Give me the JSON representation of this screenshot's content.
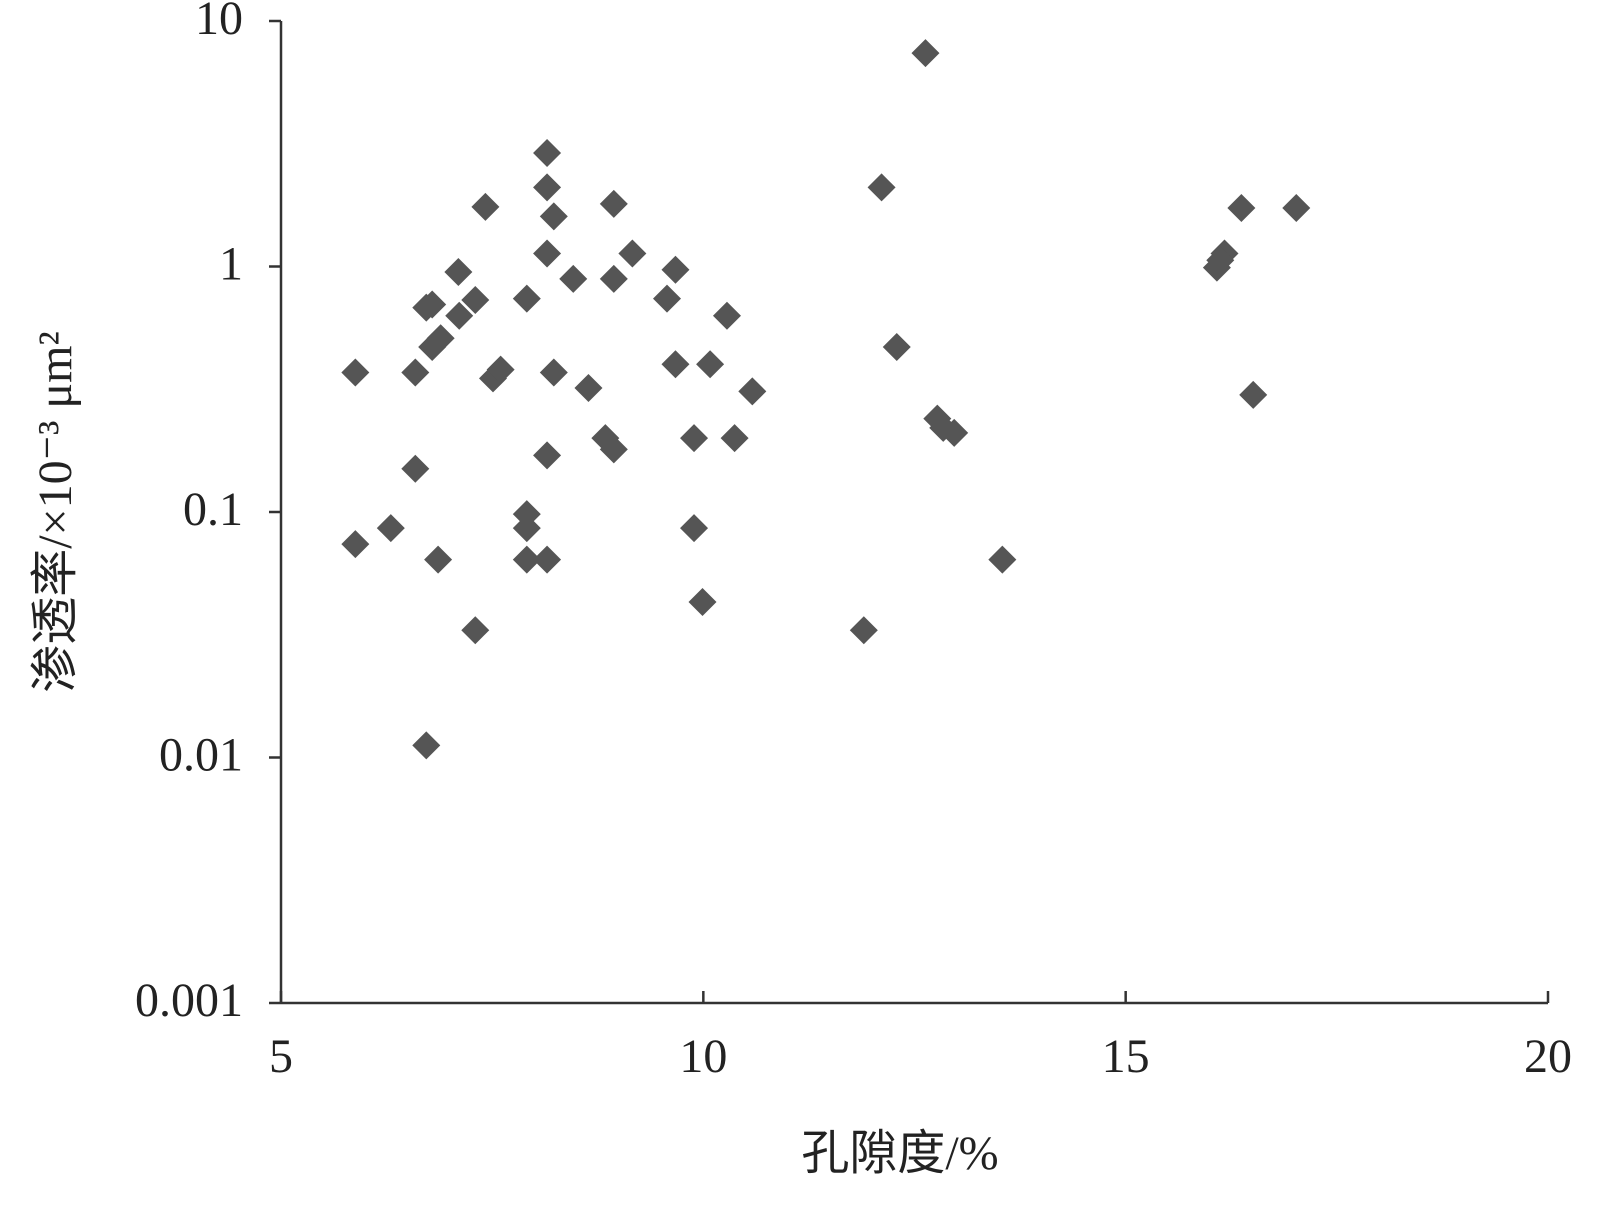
{
  "chart_data": {
    "type": "scatter",
    "x_label": "孔隙度/%",
    "y_label": "渗透率/×10⁻³ μm²",
    "color": "#555555",
    "marker": "diamond",
    "ylog": true,
    "grid": false,
    "xlim": [
      5,
      20
    ],
    "xticks": [
      5,
      10,
      15,
      20
    ],
    "ylim": [
      0.001,
      10
    ],
    "yticks": [
      0.001,
      0.01,
      0.1,
      1,
      10
    ],
    "x": [
      5.88,
      5.88,
      6.3,
      6.59,
      6.59,
      6.72,
      6.79,
      6.72,
      6.86,
      6.79,
      6.89,
      7.1,
      7.11,
      7.3,
      7.3,
      7.42,
      7.51,
      7.6,
      7.91,
      7.91,
      7.91,
      7.91,
      8.15,
      8.15,
      8.15,
      8.15,
      8.15,
      8.23,
      8.23,
      8.46,
      8.64,
      8.84,
      8.94,
      8.94,
      8.94,
      9.16,
      9.57,
      9.67,
      9.67,
      9.89,
      9.89,
      9.99,
      10.08,
      10.28,
      10.37,
      10.58,
      11.9,
      12.11,
      12.29,
      12.63,
      12.77,
      12.97,
      12.84,
      13.54,
      16.08,
      16.17,
      16.12,
      16.37,
      16.51,
      17.02
    ],
    "values": [
      0.37,
      0.074,
      0.086,
      0.37,
      0.15,
      0.68,
      0.7,
      0.0112,
      0.064,
      0.47,
      0.51,
      0.95,
      0.63,
      0.73,
      0.033,
      1.75,
      0.35,
      0.38,
      0.74,
      0.098,
      0.086,
      0.064,
      0.064,
      0.17,
      2.9,
      2.1,
      1.13,
      1.6,
      0.37,
      0.89,
      0.32,
      0.2,
      0.18,
      1.8,
      0.89,
      1.13,
      0.74,
      0.97,
      0.4,
      0.2,
      0.086,
      0.043,
      0.4,
      0.63,
      0.2,
      0.31,
      0.033,
      2.1,
      0.47,
      7.4,
      0.24,
      0.21,
      0.22,
      0.064,
      0.99,
      1.13,
      1.06,
      1.73,
      0.3,
      1.73
    ]
  }
}
